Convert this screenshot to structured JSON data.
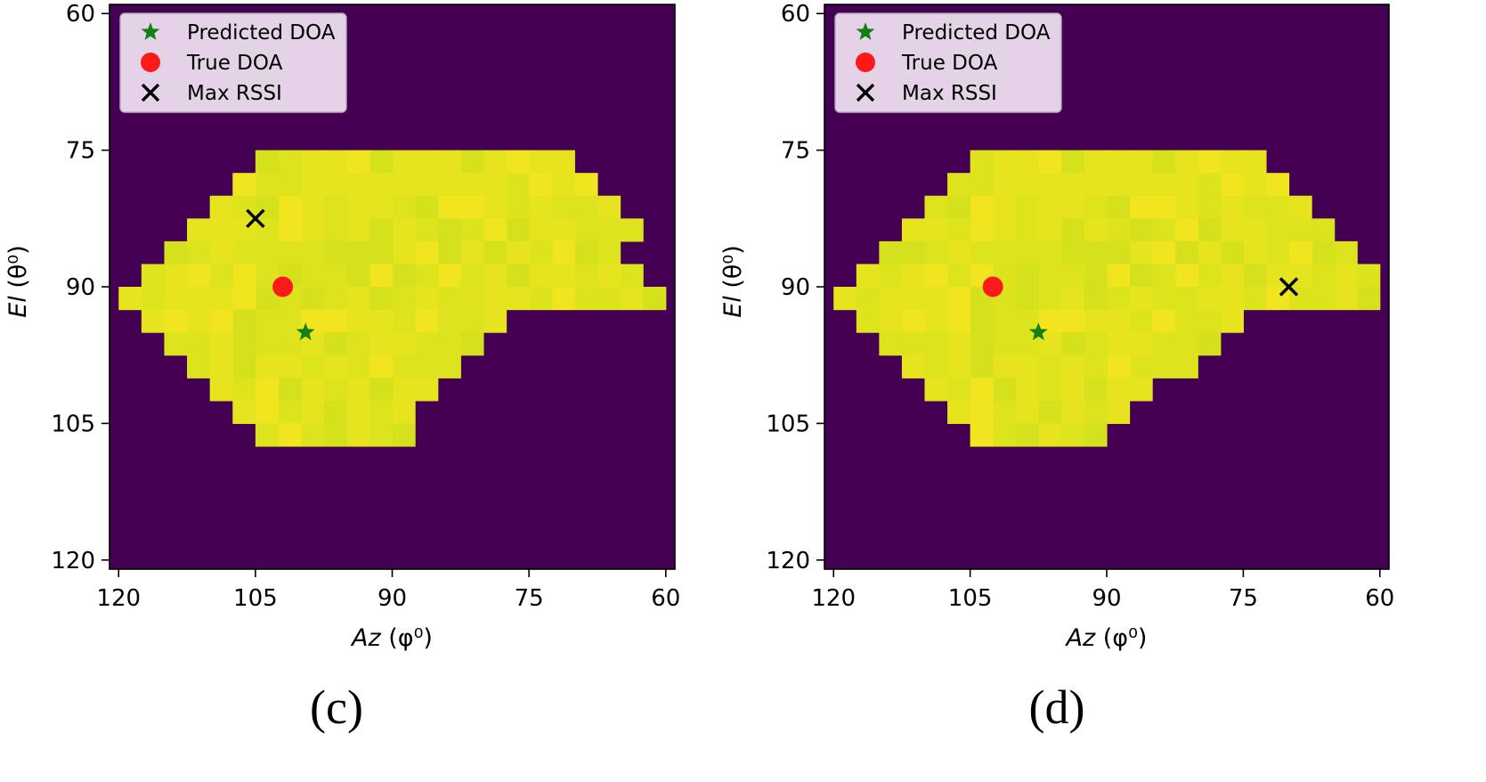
{
  "colors": {
    "background": "#440154",
    "frame": "#000000",
    "legend_bg": "#e4d2e6",
    "legend_border": "#b9a8bd",
    "predicted": "#138013",
    "true": "#ff1a1a",
    "max_rssi": "#000000"
  },
  "legend": {
    "predicted_label": "Predicted DOA",
    "true_label": "True DOA",
    "max_rssi_label": "Max RSSI",
    "predicted_icon": "star-icon",
    "true_icon": "circle-icon",
    "max_rssi_icon": "x-icon"
  },
  "chart_data": [
    {
      "type": "heatmap",
      "caption": "(c)",
      "xlabel": {
        "var": "Az",
        "unit": "(φ⁰)"
      },
      "ylabel": {
        "var": "El",
        "unit": "(θ⁰)"
      },
      "xlim": [
        121,
        59
      ],
      "ylim": [
        121,
        59
      ],
      "xticks": [
        120,
        105,
        90,
        75,
        60
      ],
      "yticks": [
        60,
        75,
        90,
        105,
        120
      ],
      "grid": false,
      "legend_position": "upper-left",
      "cell_size_deg": 2.5,
      "rows": [
        {
          "el": 76.25,
          "az_min": 71.25,
          "az_max": 103.75
        },
        {
          "el": 78.75,
          "az_min": 68.75,
          "az_max": 106.25
        },
        {
          "el": 81.25,
          "az_min": 66.25,
          "az_max": 108.75
        },
        {
          "el": 83.75,
          "az_min": 63.75,
          "az_max": 111.25
        },
        {
          "el": 86.25,
          "az_min": 66.25,
          "az_max": 113.75
        },
        {
          "el": 88.75,
          "az_min": 63.75,
          "az_max": 116.25
        },
        {
          "el": 91.25,
          "az_min": 61.25,
          "az_max": 118.75
        },
        {
          "el": 93.75,
          "az_min": 78.75,
          "az_max": 116.25
        },
        {
          "el": 96.25,
          "az_min": 81.25,
          "az_max": 113.75
        },
        {
          "el": 98.75,
          "az_min": 83.75,
          "az_max": 111.25
        },
        {
          "el": 101.25,
          "az_min": 86.25,
          "az_max": 108.75
        },
        {
          "el": 103.75,
          "az_min": 88.75,
          "az_max": 106.25
        },
        {
          "el": 106.25,
          "az_min": 88.75,
          "az_max": 103.75
        }
      ],
      "points": {
        "predicted": {
          "az": 99.5,
          "el": 95.0
        },
        "true": {
          "az": 102.0,
          "el": 90.0
        },
        "max_rssi": {
          "az": 105.0,
          "el": 82.5
        }
      }
    },
    {
      "type": "heatmap",
      "caption": "(d)",
      "xlabel": {
        "var": "Az",
        "unit": "(φ⁰)"
      },
      "ylabel": {
        "var": "El",
        "unit": "(θ⁰)"
      },
      "xlim": [
        121,
        59
      ],
      "ylim": [
        121,
        59
      ],
      "xticks": [
        120,
        105,
        90,
        75,
        60
      ],
      "yticks": [
        60,
        75,
        90,
        105,
        120
      ],
      "grid": false,
      "legend_position": "upper-left",
      "cell_size_deg": 2.5,
      "rows": [
        {
          "el": 76.25,
          "az_min": 73.75,
          "az_max": 103.75
        },
        {
          "el": 78.75,
          "az_min": 71.25,
          "az_max": 106.25
        },
        {
          "el": 81.25,
          "az_min": 68.75,
          "az_max": 108.75
        },
        {
          "el": 83.75,
          "az_min": 66.25,
          "az_max": 111.25
        },
        {
          "el": 86.25,
          "az_min": 63.75,
          "az_max": 113.75
        },
        {
          "el": 88.75,
          "az_min": 61.25,
          "az_max": 116.25
        },
        {
          "el": 91.25,
          "az_min": 61.25,
          "az_max": 118.75
        },
        {
          "el": 93.75,
          "az_min": 76.25,
          "az_max": 116.25
        },
        {
          "el": 96.25,
          "az_min": 78.75,
          "az_max": 113.75
        },
        {
          "el": 98.75,
          "az_min": 81.25,
          "az_max": 111.25
        },
        {
          "el": 101.25,
          "az_min": 86.25,
          "az_max": 108.75
        },
        {
          "el": 103.75,
          "az_min": 88.75,
          "az_max": 106.25
        },
        {
          "el": 106.25,
          "az_min": 91.25,
          "az_max": 103.75
        }
      ],
      "points": {
        "predicted": {
          "az": 97.5,
          "el": 95.0
        },
        "true": {
          "az": 102.5,
          "el": 90.0
        },
        "max_rssi": {
          "az": 70.0,
          "el": 90.0
        }
      }
    }
  ]
}
